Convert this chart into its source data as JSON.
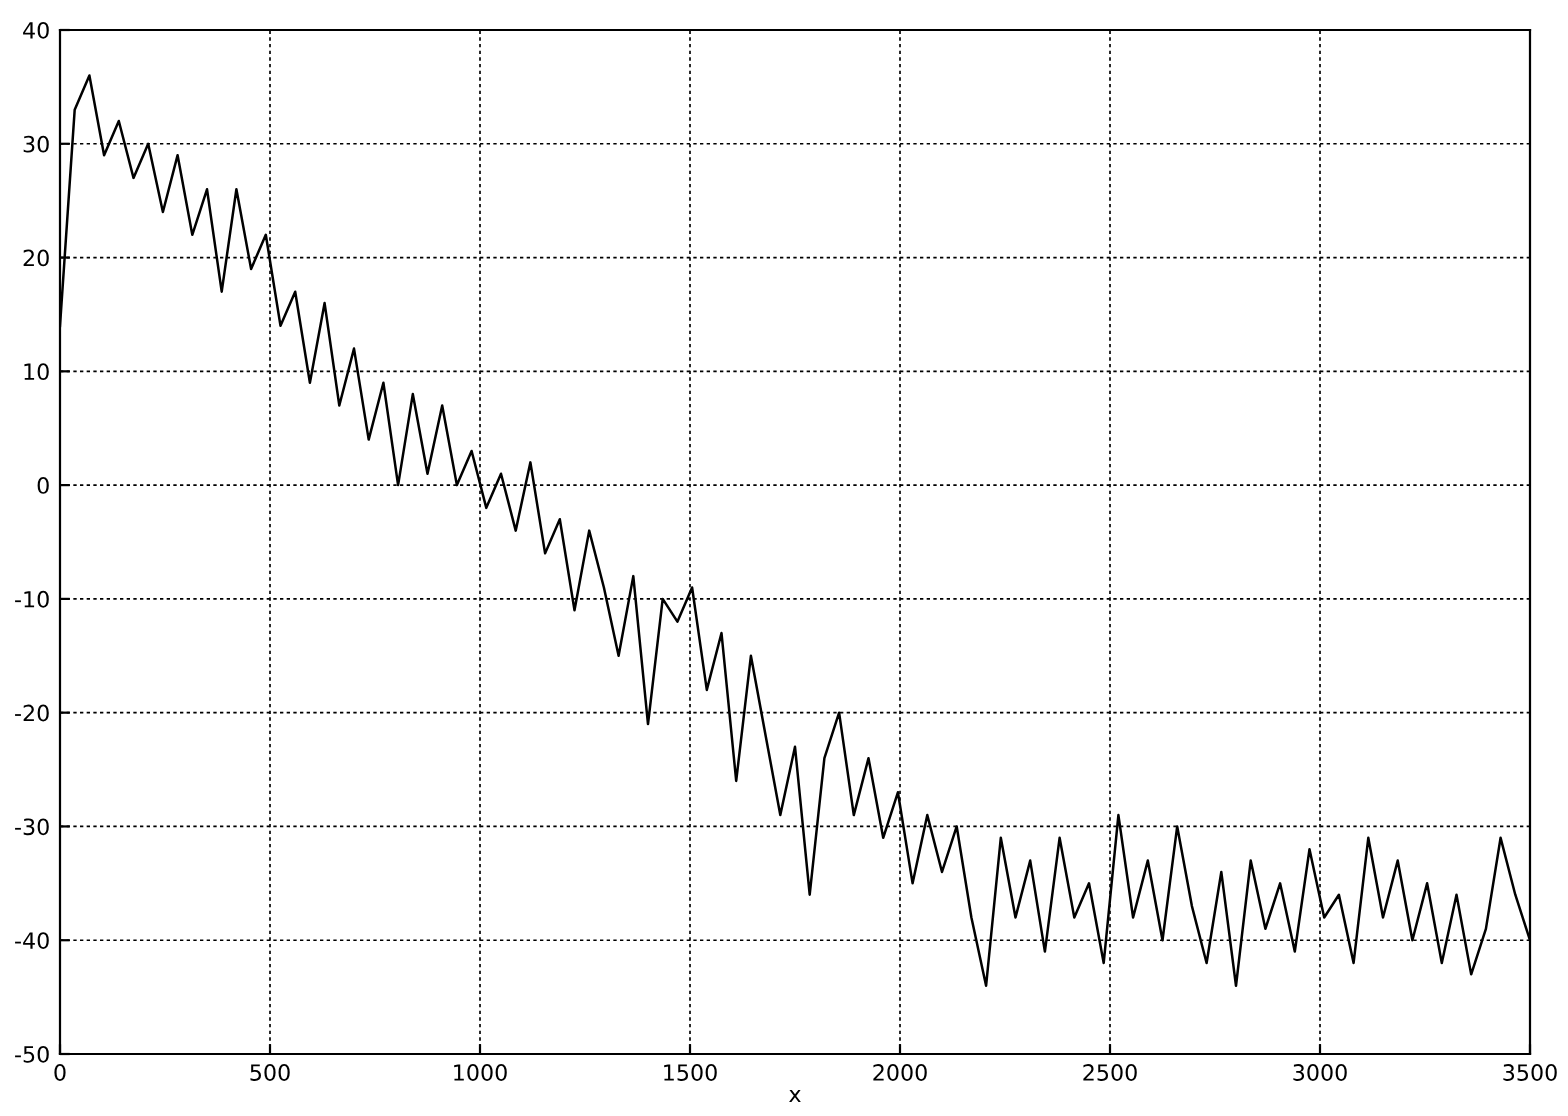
{
  "chart_data": {
    "type": "line",
    "xlabel": "x",
    "x": [
      0,
      35,
      70,
      105,
      140,
      175,
      210,
      245,
      280,
      315,
      350,
      385,
      420,
      455,
      490,
      525,
      560,
      595,
      630,
      665,
      700,
      735,
      770,
      805,
      840,
      875,
      910,
      945,
      980,
      1015,
      1050,
      1085,
      1120,
      1155,
      1190,
      1225,
      1260,
      1295,
      1330,
      1365,
      1400,
      1435,
      1470,
      1505,
      1540,
      1575,
      1610,
      1645,
      1680,
      1715,
      1750,
      1785,
      1820,
      1855,
      1890,
      1925,
      1960,
      1995,
      2030,
      2065,
      2100,
      2135,
      2170,
      2205,
      2240,
      2275,
      2310,
      2345,
      2380,
      2415,
      2450,
      2485,
      2520,
      2555,
      2590,
      2625,
      2660,
      2695,
      2730,
      2765,
      2800,
      2835,
      2870,
      2905,
      2940,
      2975,
      3010,
      3045,
      3080,
      3115,
      3150,
      3185,
      3220,
      3255,
      3290,
      3325,
      3360,
      3395,
      3430,
      3465,
      3500
    ],
    "series": [
      {
        "color": "#000000",
        "values": [
          14,
          33,
          36,
          29,
          32,
          27,
          30,
          24,
          29,
          22,
          26,
          17,
          26,
          19,
          22,
          14,
          17,
          9,
          16,
          7,
          12,
          4,
          9,
          0,
          8,
          1,
          7,
          0,
          3,
          -2,
          1,
          -4,
          2,
          -6,
          -3,
          -11,
          -4,
          -9,
          -15,
          -8,
          -21,
          -10,
          -12,
          -9,
          -18,
          -13,
          -26,
          -15,
          -22,
          -29,
          -23,
          -36,
          -24,
          -20,
          -29,
          -24,
          -31,
          -27,
          -35,
          -29,
          -34,
          -30,
          -38,
          -44,
          -31,
          -38,
          -33,
          -41,
          -31,
          -38,
          -35,
          -42,
          -29,
          -38,
          -33,
          -40,
          -30,
          -37,
          -42,
          -34,
          -44,
          -33,
          -39,
          -35,
          -41,
          -32,
          -38,
          -36,
          -42,
          -31,
          -38,
          -33,
          -40,
          -35,
          -42,
          -36,
          -43,
          -39,
          -31,
          -36,
          -40
        ]
      }
    ],
    "xlim": [
      0,
      3500
    ],
    "xticks": [
      0,
      500,
      1000,
      1500,
      2000,
      2500,
      3000,
      3500
    ],
    "ylim": [
      -50,
      40
    ],
    "yticks": [
      -50,
      -40,
      -30,
      -20,
      -10,
      0,
      10,
      20,
      30,
      40
    ],
    "grid": true,
    "line_style": "solid",
    "marker": "none"
  }
}
